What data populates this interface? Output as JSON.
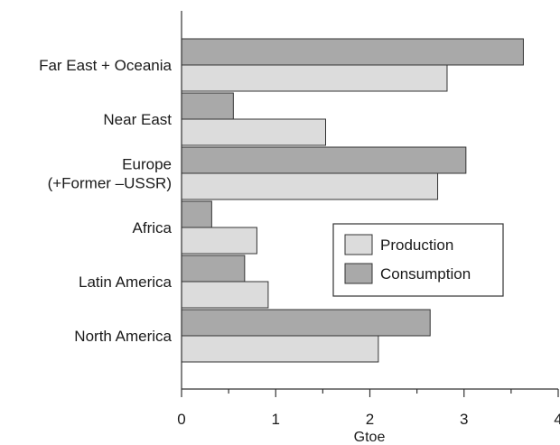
{
  "chart_data": {
    "type": "bar",
    "orientation": "horizontal",
    "categories": [
      "Far East + Oceania",
      "Near East",
      "Europe\n(+Former –USSR)",
      "Africa",
      "Latin America",
      "North America"
    ],
    "series": [
      {
        "name": "Consumption",
        "values": [
          3.63,
          0.55,
          3.02,
          0.32,
          0.67,
          2.64
        ],
        "color": "#a9a9a9"
      },
      {
        "name": "Production",
        "values": [
          2.82,
          1.53,
          2.72,
          0.8,
          0.92,
          2.09
        ],
        "color": "#dcdcdc"
      }
    ],
    "xlabel": "Gtoe",
    "xlim": [
      0,
      4
    ],
    "xticks": [
      "0",
      "1",
      "2",
      "3",
      "4"
    ],
    "legend": {
      "position": "center-right",
      "entries": [
        "Production",
        "Consumption"
      ]
    },
    "grid": false,
    "colors": {
      "production": "#dcdcdc",
      "consumption": "#a9a9a9",
      "stroke": "#333333"
    }
  }
}
